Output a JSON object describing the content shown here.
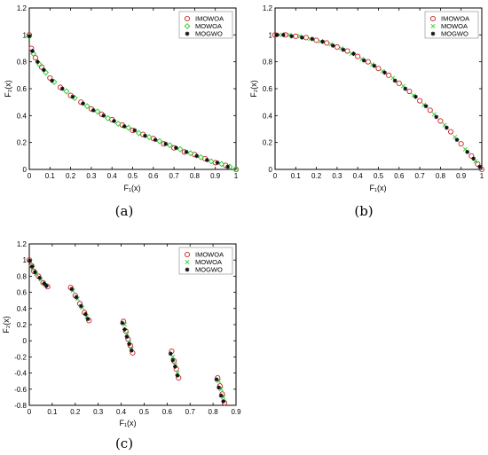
{
  "chart_data": [
    {
      "type": "scatter",
      "caption": "(a)",
      "xlabel": "F₁(x)",
      "ylabel": "F₂(x)",
      "xlim": [
        0,
        1
      ],
      "ylim": [
        0,
        1.2
      ],
      "xticks": [
        "0",
        "0.1",
        "0.2",
        "0.3",
        "0.4",
        "0.5",
        "0.6",
        "0.7",
        "0.8",
        "0.9",
        "1"
      ],
      "yticks": [
        "0",
        "0.2",
        "0.4",
        "0.6",
        "0.8",
        "1",
        "1.2"
      ],
      "legend_placement": "top-right",
      "series": [
        {
          "name": "IMOWOA",
          "marker": "circle",
          "color": "#cc2222",
          "x": [
            0,
            0.01,
            0.03,
            0.06,
            0.1,
            0.15,
            0.2,
            0.25,
            0.3,
            0.35,
            0.4,
            0.45,
            0.5,
            0.55,
            0.6,
            0.65,
            0.7,
            0.75,
            0.8,
            0.85,
            0.9,
            0.95,
            1
          ],
          "y": [
            1,
            0.9,
            0.83,
            0.76,
            0.68,
            0.61,
            0.55,
            0.5,
            0.45,
            0.41,
            0.37,
            0.33,
            0.29,
            0.26,
            0.23,
            0.19,
            0.16,
            0.13,
            0.11,
            0.08,
            0.05,
            0.03,
            0
          ]
        },
        {
          "name": "MOWOA",
          "marker": "diamond",
          "color": "#22cc22",
          "x": [
            0,
            0.02,
            0.05,
            0.08,
            0.12,
            0.18,
            0.22,
            0.28,
            0.33,
            0.38,
            0.43,
            0.48,
            0.53,
            0.58,
            0.63,
            0.68,
            0.73,
            0.78,
            0.83,
            0.88,
            0.93,
            0.97,
            1
          ],
          "y": [
            0.99,
            0.86,
            0.78,
            0.72,
            0.65,
            0.58,
            0.53,
            0.47,
            0.43,
            0.38,
            0.34,
            0.31,
            0.27,
            0.24,
            0.21,
            0.18,
            0.15,
            0.12,
            0.09,
            0.06,
            0.04,
            0.02,
            0
          ]
        },
        {
          "name": "MOGWO",
          "marker": "star",
          "color": "#111111",
          "x": [
            0,
            0.015,
            0.04,
            0.07,
            0.11,
            0.16,
            0.21,
            0.26,
            0.31,
            0.36,
            0.41,
            0.46,
            0.51,
            0.56,
            0.61,
            0.66,
            0.71,
            0.76,
            0.81,
            0.86,
            0.91,
            0.96
          ],
          "y": [
            0.99,
            0.88,
            0.8,
            0.74,
            0.66,
            0.6,
            0.54,
            0.49,
            0.44,
            0.4,
            0.36,
            0.32,
            0.29,
            0.25,
            0.22,
            0.19,
            0.16,
            0.13,
            0.1,
            0.07,
            0.05,
            0.02
          ]
        }
      ]
    },
    {
      "type": "scatter",
      "caption": "(b)",
      "xlabel": "F₁(x)",
      "ylabel": "F₂(x)",
      "xlim": [
        0,
        1
      ],
      "ylim": [
        0,
        1.2
      ],
      "xticks": [
        "0",
        "0.1",
        "0.2",
        "0.3",
        "0.4",
        "0.5",
        "0.6",
        "0.7",
        "0.8",
        "0.9",
        "1"
      ],
      "yticks": [
        "0",
        "0.2",
        "0.4",
        "0.6",
        "0.8",
        "1",
        "1.2"
      ],
      "legend_placement": "top-right",
      "series": [
        {
          "name": "IMOWOA",
          "marker": "circle",
          "color": "#cc2222",
          "x": [
            0,
            0.05,
            0.1,
            0.15,
            0.2,
            0.25,
            0.3,
            0.35,
            0.4,
            0.45,
            0.5,
            0.55,
            0.6,
            0.65,
            0.7,
            0.75,
            0.8,
            0.85,
            0.9,
            0.95,
            0.98,
            1
          ],
          "y": [
            1,
            1,
            0.99,
            0.98,
            0.96,
            0.94,
            0.91,
            0.88,
            0.84,
            0.8,
            0.75,
            0.7,
            0.64,
            0.58,
            0.51,
            0.44,
            0.36,
            0.28,
            0.19,
            0.1,
            0.04,
            0
          ]
        },
        {
          "name": "MOWOA",
          "marker": "x",
          "color": "#33cc33",
          "x": [
            0.02,
            0.07,
            0.12,
            0.17,
            0.22,
            0.27,
            0.32,
            0.37,
            0.42,
            0.47,
            0.52,
            0.57,
            0.62,
            0.67,
            0.72,
            0.77,
            0.82,
            0.87,
            0.92,
            0.97
          ],
          "y": [
            1,
            1,
            0.99,
            0.97,
            0.95,
            0.93,
            0.9,
            0.86,
            0.82,
            0.78,
            0.73,
            0.68,
            0.62,
            0.55,
            0.48,
            0.41,
            0.33,
            0.24,
            0.15,
            0.06
          ]
        },
        {
          "name": "MOGWO",
          "marker": "star",
          "color": "#111111",
          "x": [
            0.01,
            0.04,
            0.08,
            0.13,
            0.18,
            0.23,
            0.28,
            0.33,
            0.38,
            0.43,
            0.48,
            0.53,
            0.58,
            0.63,
            0.68,
            0.73,
            0.78,
            0.83,
            0.88,
            0.93,
            0.96,
            0.99
          ],
          "y": [
            1,
            1,
            0.99,
            0.98,
            0.97,
            0.95,
            0.92,
            0.89,
            0.86,
            0.81,
            0.77,
            0.72,
            0.66,
            0.6,
            0.54,
            0.47,
            0.39,
            0.31,
            0.22,
            0.13,
            0.08,
            0.02
          ]
        }
      ]
    },
    {
      "type": "scatter",
      "caption": "(c)",
      "xlabel": "F₁(x)",
      "ylabel": "F₂(x)",
      "xlim": [
        0,
        0.9
      ],
      "ylim": [
        -0.8,
        1.2
      ],
      "xticks": [
        "0",
        "0.1",
        "0.2",
        "0.3",
        "0.4",
        "0.5",
        "0.6",
        "0.7",
        "0.8",
        "0.9"
      ],
      "yticks": [
        "-0.8",
        "-0.6",
        "-0.4",
        "-0.2",
        "0",
        "0.2",
        "0.4",
        "0.6",
        "0.8",
        "1",
        "1.2"
      ],
      "legend_placement": "top-right",
      "series": [
        {
          "name": "IMOWOA",
          "marker": "circle",
          "color": "#cc2222",
          "x": [
            0,
            0.01,
            0.02,
            0.04,
            0.06,
            0.08,
            0.18,
            0.2,
            0.22,
            0.24,
            0.26,
            0.41,
            0.42,
            0.43,
            0.44,
            0.45,
            0.62,
            0.63,
            0.64,
            0.65,
            0.82,
            0.83,
            0.84,
            0.85
          ],
          "y": [
            1,
            0.93,
            0.86,
            0.8,
            0.72,
            0.67,
            0.66,
            0.56,
            0.46,
            0.35,
            0.25,
            0.24,
            0.12,
            0.02,
            -0.06,
            -0.15,
            -0.13,
            -0.25,
            -0.35,
            -0.46,
            -0.46,
            -0.56,
            -0.66,
            -0.77
          ]
        },
        {
          "name": "MOWOA",
          "marker": "x",
          "color": "#33cc33",
          "x": [
            0.005,
            0.015,
            0.03,
            0.05,
            0.07,
            0.19,
            0.21,
            0.23,
            0.25,
            0.415,
            0.425,
            0.435,
            0.445,
            0.625,
            0.635,
            0.645,
            0.825,
            0.835,
            0.845
          ],
          "y": [
            0.98,
            0.9,
            0.83,
            0.76,
            0.69,
            0.62,
            0.52,
            0.41,
            0.3,
            0.2,
            0.08,
            -0.02,
            -0.1,
            -0.2,
            -0.3,
            -0.4,
            -0.5,
            -0.6,
            -0.7
          ]
        },
        {
          "name": "MOGWO",
          "marker": "star",
          "color": "#111111",
          "x": [
            0.002,
            0.012,
            0.025,
            0.045,
            0.065,
            0.075,
            0.185,
            0.205,
            0.225,
            0.245,
            0.255,
            0.405,
            0.415,
            0.425,
            0.435,
            0.445,
            0.615,
            0.625,
            0.635,
            0.645,
            0.815,
            0.825,
            0.835,
            0.845
          ],
          "y": [
            0.99,
            0.92,
            0.85,
            0.78,
            0.71,
            0.68,
            0.64,
            0.54,
            0.43,
            0.33,
            0.27,
            0.22,
            0.14,
            0.05,
            -0.04,
            -0.12,
            -0.16,
            -0.24,
            -0.32,
            -0.43,
            -0.48,
            -0.58,
            -0.68,
            -0.75
          ]
        }
      ]
    }
  ]
}
